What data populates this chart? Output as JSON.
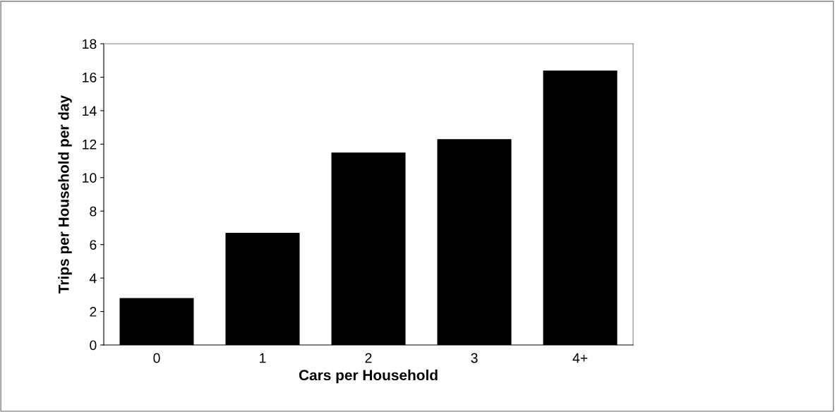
{
  "chart_data": {
    "type": "bar",
    "xlabel": "Cars per Household",
    "ylabel": "Trips per Household per day",
    "categories": [
      "0",
      "1",
      "2",
      "3",
      "4+"
    ],
    "values": [
      2.8,
      6.7,
      11.5,
      12.3,
      16.4
    ],
    "color": "#000000",
    "ylim": [
      0,
      18
    ],
    "yticks": [
      0,
      2,
      4,
      6,
      8,
      10,
      12,
      14,
      16,
      18
    ],
    "grid": false,
    "legend": false
  }
}
